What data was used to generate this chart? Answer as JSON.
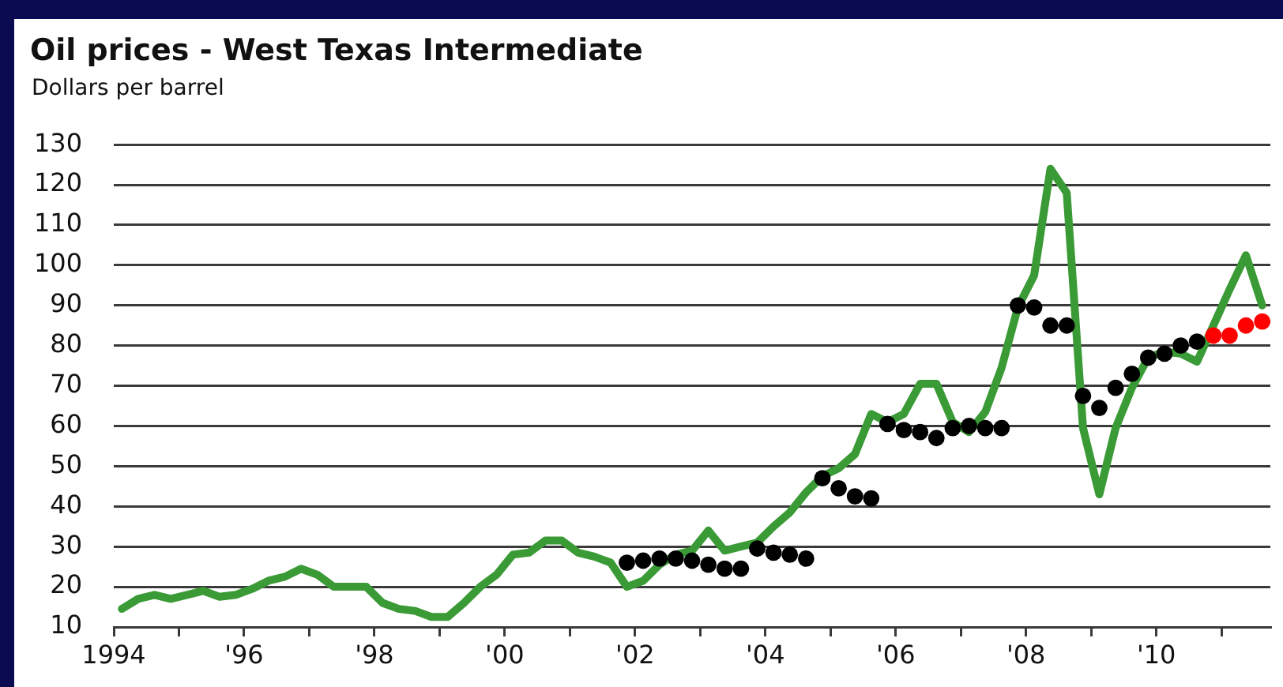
{
  "chart_data": {
    "type": "line",
    "title": "Oil prices - West Texas Intermediate",
    "ylabel": "Dollars per barrel",
    "xlim": [
      1994,
      2011.75
    ],
    "xticks": [
      {
        "value": 1994,
        "label": "1994"
      },
      {
        "value": 1995,
        "label": null
      },
      {
        "value": 1996,
        "label": "'96"
      },
      {
        "value": 1997,
        "label": null
      },
      {
        "value": 1998,
        "label": "'98"
      },
      {
        "value": 1999,
        "label": null
      },
      {
        "value": 2000,
        "label": "'00"
      },
      {
        "value": 2001,
        "label": null
      },
      {
        "value": 2002,
        "label": "'02"
      },
      {
        "value": 2003,
        "label": null
      },
      {
        "value": 2004,
        "label": "'04"
      },
      {
        "value": 2005,
        "label": null
      },
      {
        "value": 2006,
        "label": "'06"
      },
      {
        "value": 2007,
        "label": null
      },
      {
        "value": 2008,
        "label": "'08"
      },
      {
        "value": 2009,
        "label": null
      },
      {
        "value": 2010,
        "label": "'10"
      },
      {
        "value": 2011,
        "label": null
      }
    ],
    "ylim": [
      10,
      130
    ],
    "yticks": [
      10,
      20,
      30,
      40,
      50,
      60,
      70,
      80,
      90,
      100,
      110,
      120,
      130
    ],
    "grid": "y",
    "series": [
      {
        "type": "line",
        "marker": "none",
        "line_style": "solid",
        "color": "#3a9a35",
        "x": [
          1994.125,
          1994.375,
          1994.625,
          1994.875,
          1995.125,
          1995.375,
          1995.625,
          1995.875,
          1996.125,
          1996.375,
          1996.625,
          1996.875,
          1997.125,
          1997.375,
          1997.625,
          1997.875,
          1998.125,
          1998.375,
          1998.625,
          1998.875,
          1999.125,
          1999.375,
          1999.625,
          1999.875,
          2000.125,
          2000.375,
          2000.625,
          2000.875,
          2001.125,
          2001.375,
          2001.625,
          2001.875,
          2002.125,
          2002.375,
          2002.625,
          2002.875,
          2003.125,
          2003.375,
          2003.625,
          2003.875,
          2004.125,
          2004.375,
          2004.625,
          2004.875,
          2005.125,
          2005.375,
          2005.625,
          2005.875,
          2006.125,
          2006.375,
          2006.625,
          2006.875,
          2007.125,
          2007.375,
          2007.625,
          2007.875,
          2008.125,
          2008.375,
          2008.625,
          2008.875,
          2009.125,
          2009.375,
          2009.625,
          2009.875,
          2010.125,
          2010.375,
          2010.625,
          2010.875,
          2011.125,
          2011.375,
          2011.625
        ],
        "values": [
          14.5,
          17,
          18,
          17,
          18,
          19,
          17.5,
          18,
          19.5,
          21.5,
          22.5,
          24.5,
          23,
          20,
          20,
          20,
          16,
          14.5,
          14,
          12.5,
          12.5,
          16,
          20,
          23,
          28,
          28.5,
          31.5,
          31.5,
          28.5,
          27.5,
          26,
          20,
          21.5,
          25.5,
          28,
          29,
          34,
          29,
          30,
          31,
          35,
          38.5,
          43.5,
          47.5,
          49.5,
          53,
          63,
          61,
          63,
          70.5,
          70.5,
          61,
          58.5,
          63.5,
          74.5,
          89.5,
          97.5,
          124,
          118,
          59.5,
          43,
          59.5,
          69.5,
          77,
          78.5,
          78,
          76,
          85,
          94,
          102.5,
          90
        ]
      },
      {
        "type": "scatter",
        "marker": "circle",
        "color": "#000000",
        "x": [
          2001.875,
          2002.125,
          2002.375,
          2002.625,
          2002.875,
          2003.125,
          2003.375,
          2003.625,
          2003.875,
          2004.125,
          2004.375,
          2004.625,
          2004.875,
          2005.125,
          2005.375,
          2005.625,
          2005.875,
          2006.125,
          2006.375,
          2006.625,
          2006.875,
          2007.125,
          2007.375,
          2007.625,
          2007.875,
          2008.125,
          2008.375,
          2008.625,
          2008.875,
          2009.125,
          2009.375,
          2009.625,
          2009.875,
          2010.125,
          2010.375,
          2010.625
        ],
        "values": [
          26,
          26.5,
          27,
          27,
          26.5,
          25.5,
          24.5,
          24.5,
          29.5,
          28.5,
          28,
          27,
          47,
          44.5,
          42.5,
          42,
          60.5,
          59,
          58.5,
          57,
          59.5,
          60,
          59.5,
          59.5,
          90,
          89.5,
          85,
          85,
          67.5,
          64.5,
          69.5,
          73,
          77,
          78,
          80,
          81
        ]
      },
      {
        "type": "scatter",
        "marker": "circle",
        "color": "#ff0000",
        "x": [
          2010.875,
          2011.125,
          2011.375,
          2011.625
        ],
        "values": [
          82.5,
          82.5,
          85,
          86
        ]
      }
    ]
  }
}
